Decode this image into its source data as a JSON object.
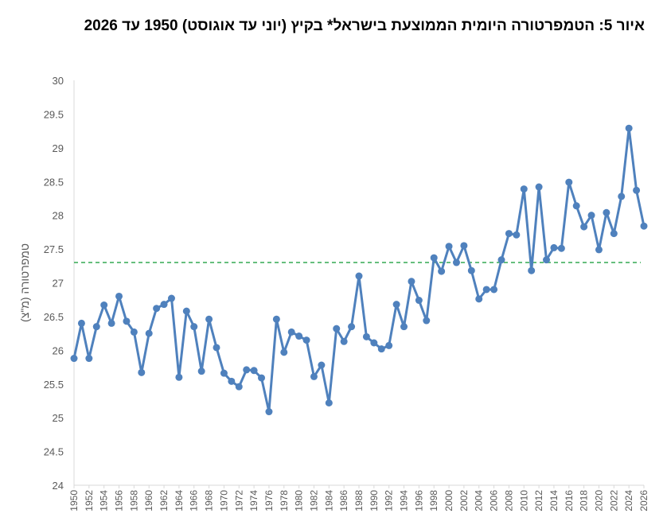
{
  "title": "איור 5: הטמפרטורה היומית הממוצעת בישראל* בקיץ (יוני עד אוגוסט) 1950 עד 2026",
  "chart_data": {
    "type": "line",
    "ylabel": "טמפרטורה (מ\"צ)",
    "ylim": [
      24,
      30
    ],
    "yticks": [
      24,
      24.5,
      25,
      25.5,
      26,
      26.5,
      27,
      27.5,
      28,
      28.5,
      29,
      29.5,
      30
    ],
    "xlim": [
      1950,
      2026
    ],
    "xticks": [
      1950,
      1952,
      1954,
      1956,
      1958,
      1960,
      1962,
      1964,
      1966,
      1968,
      1970,
      1972,
      1974,
      1976,
      1978,
      1980,
      1982,
      1984,
      1986,
      1988,
      1990,
      1992,
      1994,
      1996,
      1998,
      2000,
      2002,
      2004,
      2006,
      2008,
      2010,
      2012,
      2014,
      2016,
      2018,
      2020,
      2022,
      2024,
      2026
    ],
    "series": [
      {
        "name": "",
        "color": "#4f81bd",
        "x": [
          1950,
          1951,
          1952,
          1953,
          1954,
          1955,
          1956,
          1957,
          1958,
          1959,
          1960,
          1961,
          1962,
          1963,
          1964,
          1965,
          1966,
          1967,
          1968,
          1969,
          1970,
          1971,
          1972,
          1973,
          1974,
          1975,
          1976,
          1977,
          1978,
          1979,
          1980,
          1981,
          1982,
          1983,
          1984,
          1985,
          1986,
          1987,
          1988,
          1989,
          1990,
          1991,
          1992,
          1993,
          1994,
          1995,
          1996,
          1997,
          1998,
          1999,
          2000,
          2001,
          2002,
          2003,
          2004,
          2005,
          2006,
          2007,
          2008,
          2009,
          2010,
          2011,
          2012,
          2013,
          2014,
          2015,
          2016,
          2017,
          2018,
          2019,
          2020,
          2021,
          2022,
          2023,
          2024,
          2025,
          2026
        ],
        "values": [
          25.88,
          26.4,
          25.88,
          26.35,
          26.67,
          26.4,
          26.8,
          26.43,
          26.27,
          25.67,
          26.25,
          26.62,
          26.68,
          26.77,
          25.6,
          26.58,
          26.35,
          25.69,
          26.46,
          26.04,
          25.66,
          25.54,
          25.46,
          25.71,
          25.7,
          25.59,
          25.09,
          26.46,
          25.97,
          26.27,
          26.21,
          26.15,
          25.61,
          25.78,
          25.22,
          26.32,
          26.13,
          26.35,
          27.1,
          26.2,
          26.11,
          26.02,
          26.07,
          26.68,
          26.35,
          27.02,
          26.74,
          26.44,
          27.37,
          27.17,
          27.54,
          27.3,
          27.55,
          27.18,
          26.76,
          26.9,
          26.9,
          27.34,
          27.73,
          27.71,
          28.39,
          27.18,
          28.42,
          27.34,
          27.52,
          27.51,
          28.49,
          28.14,
          27.83,
          28.0,
          27.49,
          28.04,
          27.73,
          28.28,
          29.29,
          28.37,
          27.84
        ]
      }
    ],
    "reference_line": {
      "value": 27.3,
      "color": "#33a852",
      "style": "dashed"
    },
    "grid": false,
    "legend": "none"
  }
}
